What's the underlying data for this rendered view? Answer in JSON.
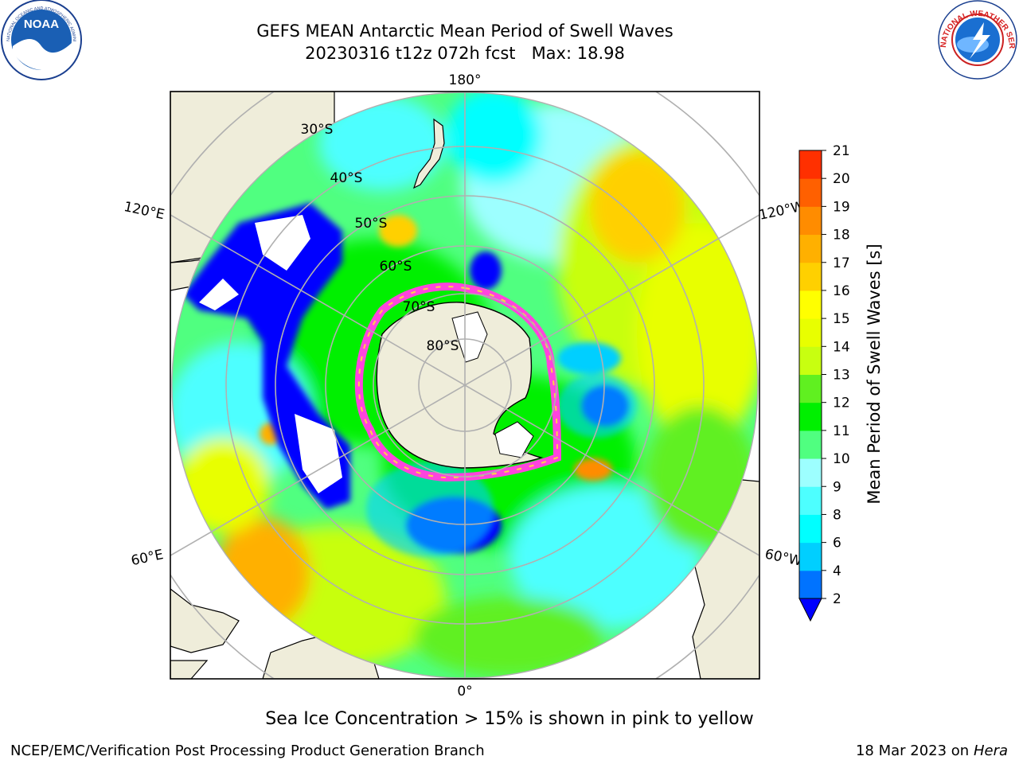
{
  "header": {
    "title_line1": "GEFS MEAN Antarctic Mean Period of Swell Waves",
    "title_line2": "20230316 t12z 072h fcst   Max: 18.98"
  },
  "logos": {
    "noaa_text": "NOAA",
    "noaa_ring_text": "NATIONAL OCEANIC AND ATMOSPHERIC ADMINISTRATION · U.S. DEPARTMENT OF COMMERCE",
    "nws_ring_text": "NATIONAL WEATHER SERVICE"
  },
  "map": {
    "projection": "south-polar-stereographic",
    "longitude_labels": {
      "top": "180°",
      "bottom": "0°",
      "upper_left": "120°E",
      "upper_right": "120°W",
      "lower_left": "60°E",
      "lower_right": "60°W"
    },
    "latitude_labels": [
      "30°S",
      "40°S",
      "50°S",
      "60°S",
      "70°S",
      "80°S"
    ],
    "colors": {
      "land": "#efedda",
      "grid": "#b0b0b0",
      "sea_ice": "#ff44dd",
      "sea_ice_edge": "#ffd24a"
    }
  },
  "colorbar": {
    "label": "Mean Period of Swell Waves [s]",
    "ticks": [
      "2",
      "4",
      "6",
      "8",
      "9",
      "10",
      "11",
      "12",
      "13",
      "14",
      "15",
      "16",
      "17",
      "18",
      "19",
      "20",
      "21"
    ],
    "colors": [
      "#0073ff",
      "#00cfff",
      "#00ffff",
      "#4dffff",
      "#9dffff",
      "#50ff80",
      "#00f000",
      "#60f020",
      "#c8ff10",
      "#e8ff00",
      "#ffff00",
      "#ffd000",
      "#ffb000",
      "#ff8c00",
      "#ff6000",
      "#ff3000",
      "#ff0000"
    ],
    "extend_color": "#0000ff"
  },
  "footer": {
    "sea_ice_note": "Sea Ice Concentration > 15% is shown in pink to yellow",
    "left": "NCEP/EMC/Verification Post Processing Product Generation Branch",
    "right_date": "18 Mar 2023 on",
    "right_host": "Hera"
  }
}
